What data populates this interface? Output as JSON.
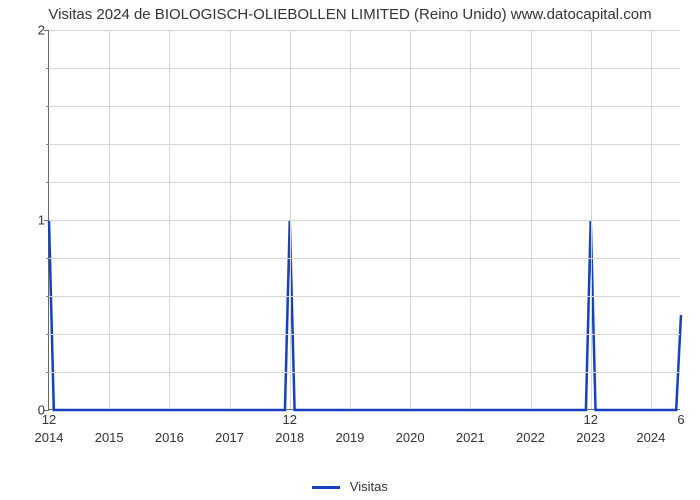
{
  "chart": {
    "type": "line",
    "title": "Visitas 2024 de BIOLOGISCH-OLIEBOLLEN LIMITED (Reino Unido) www.datocapital.com",
    "title_fontsize": 15,
    "background_color": "#ffffff",
    "grid_color": "#d6d6d6",
    "axis_color": "#666666",
    "label_fontsize": 13,
    "xlim": [
      2014,
      2024.5
    ],
    "ylim": [
      0,
      2
    ],
    "x_ticks": [
      2014,
      2015,
      2016,
      2017,
      2018,
      2019,
      2020,
      2021,
      2022,
      2023,
      2024
    ],
    "y_major_ticks": [
      0,
      1,
      2
    ],
    "y_minor_ticks": [
      0.2,
      0.4,
      0.6,
      0.8,
      1.2,
      1.4,
      1.6,
      1.8
    ],
    "series": {
      "name": "Visitas",
      "color": "#1640c0",
      "line_width": 2.5,
      "points": [
        {
          "x": 2014.0,
          "y": 1.0
        },
        {
          "x": 2014.08,
          "y": 0.0
        },
        {
          "x": 2017.92,
          "y": 0.0
        },
        {
          "x": 2018.0,
          "y": 1.0
        },
        {
          "x": 2018.08,
          "y": 0.0
        },
        {
          "x": 2022.92,
          "y": 0.0
        },
        {
          "x": 2023.0,
          "y": 1.0
        },
        {
          "x": 2023.08,
          "y": 0.0
        },
        {
          "x": 2024.42,
          "y": 0.0
        },
        {
          "x": 2024.5,
          "y": 0.5
        }
      ]
    },
    "value_labels": [
      {
        "x": 2014.0,
        "text": "12"
      },
      {
        "x": 2018.0,
        "text": "12"
      },
      {
        "x": 2023.0,
        "text": "12"
      },
      {
        "x": 2024.5,
        "text": "6"
      }
    ],
    "legend_label": "Visitas"
  }
}
